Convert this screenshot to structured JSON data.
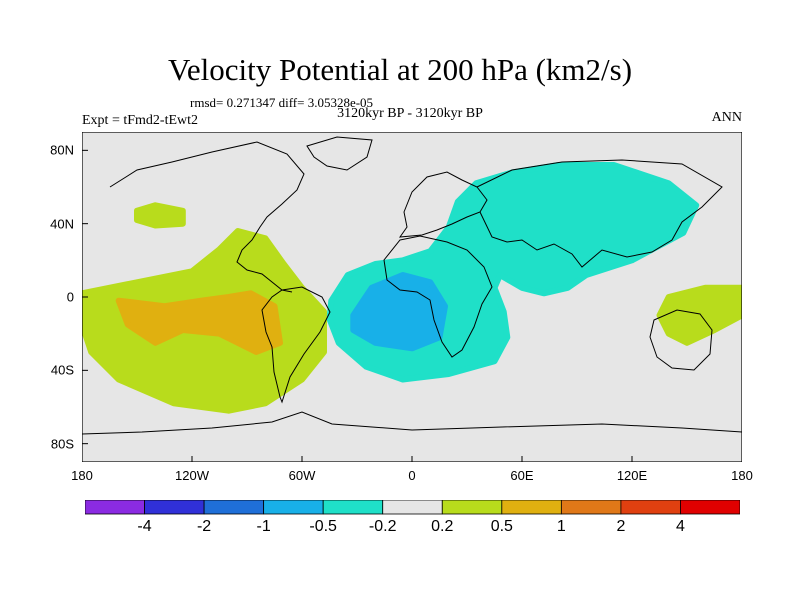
{
  "chart_data": {
    "type": "heatmap",
    "title": "Velocity Potential at 200 hPa (km2/s)",
    "stats_line": "rmsd= 0.271347 diff= 3.05328e-05",
    "period": "3120kyr BP - 3120kyr BP",
    "experiment": "Expt = tFmd2-tEwt2",
    "season": "ANN",
    "x_ticks": [
      {
        "lon": -180,
        "label": "180"
      },
      {
        "lon": -120,
        "label": "120W"
      },
      {
        "lon": -60,
        "label": "60W"
      },
      {
        "lon": 0,
        "label": "0"
      },
      {
        "lon": 60,
        "label": "60E"
      },
      {
        "lon": 120,
        "label": "120E"
      },
      {
        "lon": 180,
        "label": "180"
      }
    ],
    "y_ticks": [
      {
        "lat": 80,
        "label": "80N"
      },
      {
        "lat": 40,
        "label": "40N"
      },
      {
        "lat": 0,
        "label": "0"
      },
      {
        "lat": -40,
        "label": "40S"
      },
      {
        "lat": -80,
        "label": "80S"
      }
    ],
    "xlim": [
      -180,
      180
    ],
    "ylim": [
      -90,
      90
    ],
    "colorbar": {
      "colors": [
        "#8b2be2",
        "#3030d8",
        "#1f6fd8",
        "#18b0e8",
        "#1fe0c8",
        "#e6e6e6",
        "#b8dc1c",
        "#e0b010",
        "#e07818",
        "#e04010",
        "#e00000"
      ],
      "labels": [
        "-4",
        "-2",
        "-1",
        "-0.5",
        "-0.2",
        "0.2",
        "0.5",
        "1",
        "2",
        "4"
      ]
    },
    "regions": [
      {
        "name": "east-pacific-positive",
        "level": "0.2 to 0.5",
        "color": "#b8dc1c",
        "points": [
          [
            -180,
            2
          ],
          [
            -150,
            8
          ],
          [
            -120,
            14
          ],
          [
            -105,
            26
          ],
          [
            -95,
            36
          ],
          [
            -80,
            32
          ],
          [
            -70,
            18
          ],
          [
            -60,
            5
          ],
          [
            -48,
            -8
          ],
          [
            -48,
            -30
          ],
          [
            -60,
            -45
          ],
          [
            -80,
            -58
          ],
          [
            -100,
            -62
          ],
          [
            -130,
            -58
          ],
          [
            -160,
            -45
          ],
          [
            -175,
            -30
          ],
          [
            -180,
            -15
          ]
        ]
      },
      {
        "name": "north-pacific-positive",
        "level": "0.2 to 0.5",
        "color": "#b8dc1c",
        "points": [
          [
            -150,
            47
          ],
          [
            -140,
            50
          ],
          [
            -125,
            47
          ],
          [
            -125,
            40
          ],
          [
            -140,
            39
          ],
          [
            -150,
            42
          ]
        ]
      },
      {
        "name": "east-pacific-core",
        "level": "0.5 to 1",
        "color": "#e0b010",
        "points": [
          [
            -160,
            -2
          ],
          [
            -135,
            -5
          ],
          [
            -115,
            -2
          ],
          [
            -100,
            0
          ],
          [
            -88,
            2
          ],
          [
            -75,
            -5
          ],
          [
            -72,
            -25
          ],
          [
            -85,
            -30
          ],
          [
            -105,
            -20
          ],
          [
            -125,
            -18
          ],
          [
            -140,
            -25
          ],
          [
            -155,
            -15
          ]
        ]
      },
      {
        "name": "west-pacific-positive",
        "level": "0.2 to 0.5",
        "color": "#b8dc1c",
        "points": [
          [
            140,
            0
          ],
          [
            160,
            5
          ],
          [
            180,
            5
          ],
          [
            180,
            -10
          ],
          [
            165,
            -18
          ],
          [
            150,
            -25
          ],
          [
            140,
            -20
          ],
          [
            135,
            -10
          ]
        ]
      },
      {
        "name": "afro-eurasian-negative",
        "level": "-0.5 to -0.2",
        "color": "#1fe0c8",
        "points": [
          [
            -44,
            -2
          ],
          [
            -35,
            12
          ],
          [
            -20,
            18
          ],
          [
            -5,
            20
          ],
          [
            10,
            25
          ],
          [
            20,
            38
          ],
          [
            25,
            52
          ],
          [
            35,
            62
          ],
          [
            55,
            68
          ],
          [
            80,
            72
          ],
          [
            110,
            72
          ],
          [
            140,
            62
          ],
          [
            155,
            50
          ],
          [
            148,
            35
          ],
          [
            120,
            20
          ],
          [
            95,
            12
          ],
          [
            85,
            5
          ],
          [
            72,
            2
          ],
          [
            60,
            5
          ],
          [
            48,
            12
          ],
          [
            45,
            5
          ],
          [
            50,
            -8
          ],
          [
            52,
            -22
          ],
          [
            45,
            -35
          ],
          [
            20,
            -42
          ],
          [
            -5,
            -45
          ],
          [
            -25,
            -38
          ],
          [
            -40,
            -25
          ],
          [
            -45,
            -12
          ]
        ]
      },
      {
        "name": "atlantic-negative-core",
        "level": "-1 to -0.5",
        "color": "#18b0e8",
        "points": [
          [
            -32,
            -10
          ],
          [
            -22,
            5
          ],
          [
            -5,
            12
          ],
          [
            10,
            8
          ],
          [
            18,
            -5
          ],
          [
            15,
            -22
          ],
          [
            0,
            -28
          ],
          [
            -20,
            -25
          ],
          [
            -32,
            -18
          ]
        ]
      }
    ]
  }
}
